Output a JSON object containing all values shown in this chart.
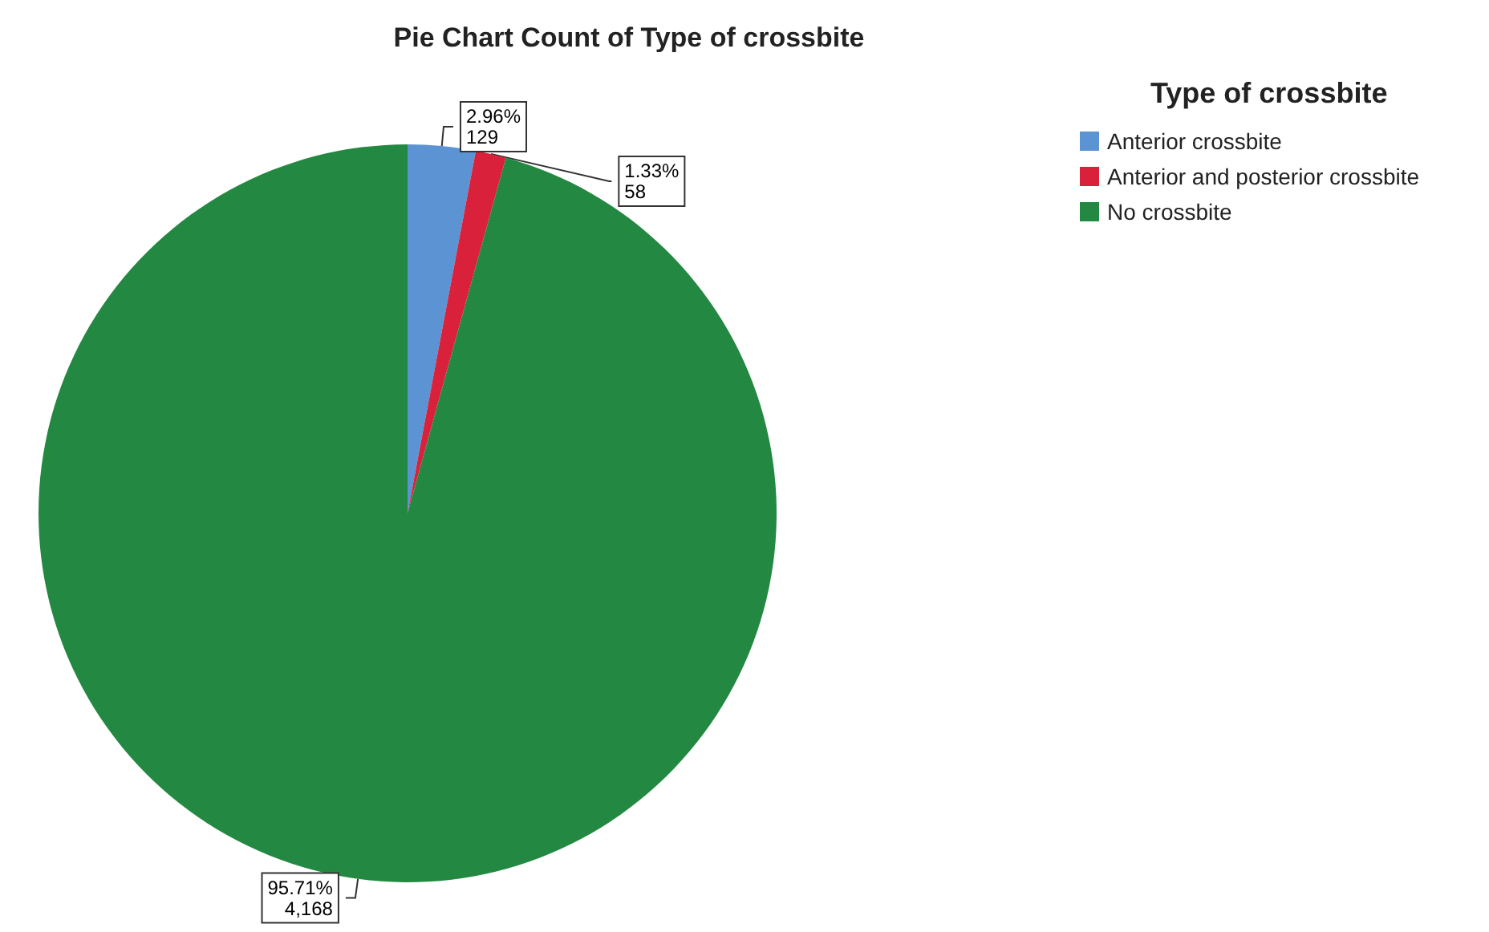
{
  "chart_data": {
    "type": "pie",
    "title": "Pie Chart Count of Type of crossbite",
    "legend_title": "Type of crossbite",
    "categories": [
      "Anterior crossbite",
      "Anterior and posterior crossbite",
      "No crossbite"
    ],
    "values": [
      129,
      58,
      4168
    ],
    "colors": [
      "#5b93d3",
      "#d9213b",
      "#238841"
    ],
    "value_labels": [
      "2.96%\n129",
      "1.33%\n58",
      "95.71%\n4,168"
    ],
    "legend": "top right"
  }
}
